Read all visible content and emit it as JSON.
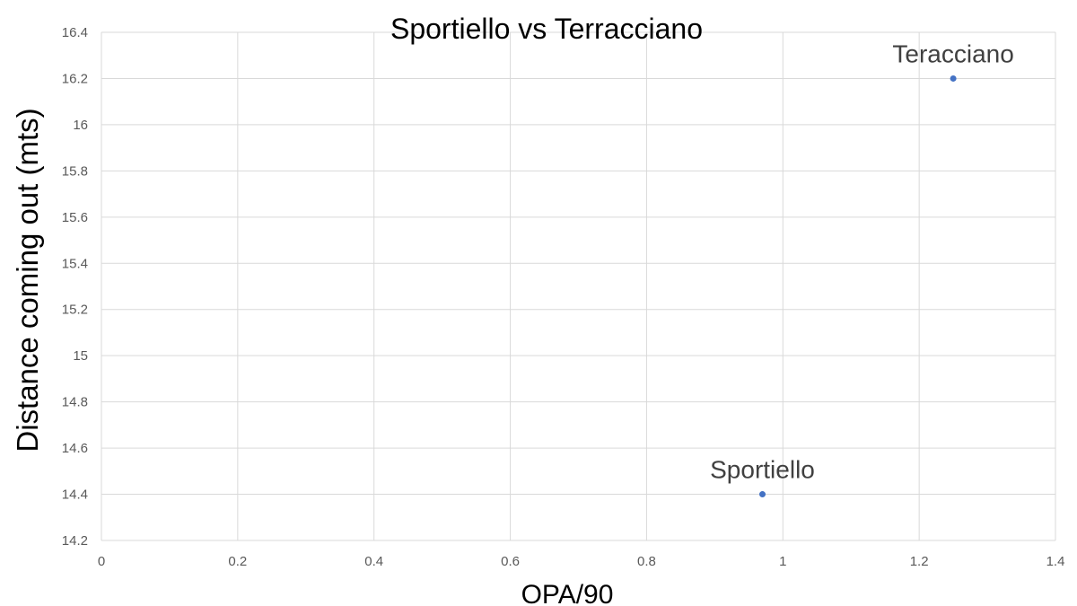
{
  "chart_data": {
    "type": "scatter",
    "title": "Sportiello vs Terracciano",
    "xlabel": "OPA/90",
    "ylabel": "Distance coming out (mts)",
    "xlim": [
      0,
      1.4
    ],
    "ylim": [
      14.2,
      16.4
    ],
    "x_ticks": [
      0,
      0.2,
      0.4,
      0.6,
      0.8,
      1,
      1.2,
      1.4
    ],
    "y_ticks": [
      14.2,
      14.4,
      14.6,
      14.8,
      15,
      15.2,
      15.4,
      15.6,
      15.8,
      16,
      16.2,
      16.4
    ],
    "x_tick_labels": [
      "0",
      "0.2",
      "0.4",
      "0.6",
      "0.8",
      "1",
      "1.2",
      "1.4"
    ],
    "y_tick_labels": [
      "14.2",
      "14.4",
      "14.6",
      "14.8",
      "15",
      "15.2",
      "15.4",
      "15.6",
      "15.8",
      "16",
      "16.2",
      "16.4"
    ],
    "grid": true,
    "points": [
      {
        "label": "Sportiello",
        "x": 0.97,
        "y": 14.4
      },
      {
        "label": "Teracciano",
        "x": 1.25,
        "y": 16.2
      }
    ],
    "colors": {
      "point": "#4472C4",
      "grid": "#D9D9D9"
    }
  }
}
